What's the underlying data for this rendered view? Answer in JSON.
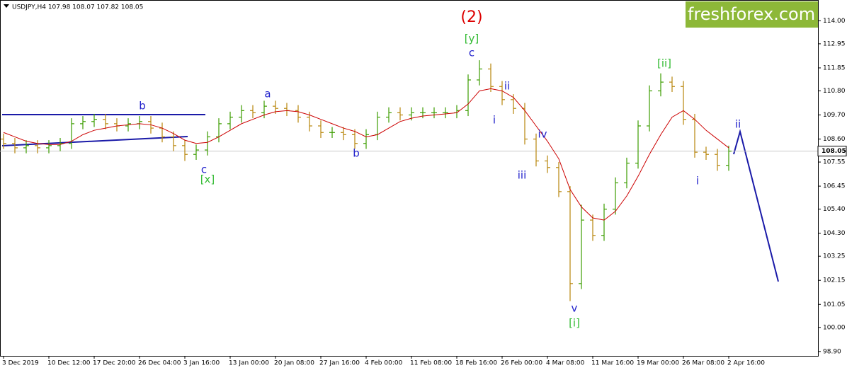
{
  "chart_data": {
    "type": "ohlc",
    "title": "USDJPY,H4  107.98 108.07 107.82 108.05",
    "logo": "freshforex.com",
    "categories": [
      "3 Dec 2019",
      null,
      null,
      null,
      "10 Dec 12:00",
      null,
      null,
      null,
      "17 Dec 20:00",
      null,
      null,
      null,
      "26 Dec 04:00",
      null,
      null,
      null,
      "3 Jan 16:00",
      null,
      null,
      null,
      "13 Jan 00:00",
      null,
      null,
      null,
      "20 Jan 08:00",
      null,
      null,
      null,
      "27 Jan 16:00",
      null,
      null,
      null,
      "4 Feb 00:00",
      null,
      null,
      null,
      "11 Feb 08:00",
      null,
      null,
      null,
      "18 Feb 16:00",
      null,
      null,
      null,
      "26 Feb 00:00",
      null,
      null,
      null,
      "4 Mar 08:00",
      null,
      null,
      null,
      "11 Mar 16:00",
      null,
      null,
      null,
      "19 Mar 00:00",
      null,
      null,
      null,
      "26 Mar 08:00",
      null,
      null,
      null,
      "2 Apr 16:00"
    ],
    "open": [
      108.6,
      108.4,
      108.2,
      108.3,
      108.2,
      108.3,
      108.4,
      109.3,
      109.4,
      109.5,
      109.3,
      109.2,
      109.3,
      109.4,
      109.1,
      108.7,
      108.3,
      107.9,
      108.1,
      108.7,
      109.3,
      109.6,
      109.9,
      109.8,
      110.1,
      110.0,
      109.9,
      109.6,
      109.2,
      108.9,
      108.9,
      108.8,
      108.4,
      108.8,
      109.6,
      109.8,
      109.7,
      109.8,
      109.8,
      109.8,
      109.8,
      109.9,
      111.3,
      111.8,
      111.0,
      110.4,
      110.0,
      108.6,
      107.6,
      107.3,
      106.2,
      102.0,
      104.9,
      104.2,
      105.4,
      106.6,
      107.5,
      109.2,
      110.8,
      111.2,
      111.0,
      109.5,
      108.0,
      107.9,
      107.4
    ],
    "high": [
      108.85,
      108.65,
      108.55,
      108.55,
      108.55,
      108.65,
      109.55,
      109.65,
      109.75,
      109.75,
      109.55,
      109.55,
      109.65,
      109.65,
      109.35,
      108.95,
      108.55,
      108.35,
      108.95,
      109.55,
      109.85,
      110.15,
      110.15,
      110.35,
      110.35,
      110.25,
      110.15,
      109.85,
      109.45,
      109.15,
      109.15,
      109.05,
      109.05,
      109.85,
      110.05,
      110.05,
      110.05,
      110.05,
      110.05,
      110.05,
      110.15,
      111.55,
      112.2,
      112.05,
      111.25,
      110.65,
      110.25,
      108.85,
      107.85,
      107.55,
      106.45,
      105.6,
      105.15,
      105.65,
      106.85,
      107.75,
      109.45,
      111.05,
      111.6,
      111.45,
      111.25,
      109.75,
      108.25,
      108.15,
      108.3
    ],
    "low": [
      108.15,
      107.95,
      107.95,
      107.95,
      107.95,
      108.05,
      108.15,
      109.05,
      109.15,
      109.05,
      108.95,
      108.95,
      109.05,
      108.85,
      108.45,
      108.05,
      107.6,
      107.65,
      107.85,
      108.45,
      109.05,
      109.35,
      109.55,
      109.55,
      109.75,
      109.65,
      109.35,
      108.95,
      108.65,
      108.65,
      108.55,
      108.15,
      108.15,
      108.55,
      109.35,
      109.45,
      109.45,
      109.55,
      109.55,
      109.55,
      109.55,
      109.65,
      111.05,
      110.75,
      110.15,
      109.75,
      108.35,
      107.35,
      107.05,
      105.95,
      101.2,
      101.75,
      103.95,
      103.95,
      105.15,
      106.35,
      107.25,
      108.95,
      110.55,
      110.75,
      109.25,
      107.75,
      107.65,
      107.15,
      107.15
    ],
    "close": [
      108.4,
      108.2,
      108.3,
      108.2,
      108.3,
      108.4,
      109.3,
      109.4,
      109.5,
      109.3,
      109.2,
      109.3,
      109.4,
      109.1,
      108.7,
      108.3,
      107.9,
      108.1,
      108.7,
      109.3,
      109.6,
      109.9,
      109.8,
      110.1,
      110.0,
      109.9,
      109.6,
      109.2,
      108.9,
      108.9,
      108.8,
      108.4,
      108.8,
      109.6,
      109.8,
      109.7,
      109.8,
      109.8,
      109.8,
      109.8,
      109.9,
      111.3,
      111.8,
      111.0,
      110.4,
      110.0,
      108.6,
      107.6,
      107.3,
      106.2,
      102.0,
      104.9,
      104.2,
      105.4,
      106.6,
      107.5,
      109.2,
      110.8,
      111.2,
      111.0,
      109.5,
      108.0,
      107.9,
      107.4,
      108.05
    ],
    "up_color": "#3c9d00",
    "down_color": "#b8860b",
    "ma": {
      "color": "#cc0000",
      "values": [
        108.9,
        108.7,
        108.5,
        108.4,
        108.35,
        108.35,
        108.5,
        108.8,
        109.0,
        109.1,
        109.2,
        109.25,
        109.3,
        109.25,
        109.1,
        108.85,
        108.55,
        108.4,
        108.45,
        108.7,
        109.0,
        109.3,
        109.5,
        109.7,
        109.85,
        109.9,
        109.85,
        109.7,
        109.5,
        109.3,
        109.1,
        108.95,
        108.7,
        108.8,
        109.1,
        109.4,
        109.55,
        109.65,
        109.7,
        109.75,
        109.8,
        110.2,
        110.8,
        110.9,
        110.8,
        110.5,
        109.9,
        109.2,
        108.5,
        107.7,
        106.3,
        105.5,
        105.0,
        104.9,
        105.3,
        106.0,
        106.9,
        107.9,
        108.8,
        109.6,
        109.9,
        109.5,
        109.0,
        108.6,
        108.2
      ]
    },
    "last_price": 108.05,
    "ylim": [
      98.7,
      114.95
    ],
    "yticks": [
      {
        "value": 114,
        "label": "114.00"
      },
      {
        "value": 112.95,
        "label": "112.95"
      },
      {
        "value": 111.85,
        "label": "111.85"
      },
      {
        "value": 110.8,
        "label": "110.80"
      },
      {
        "value": 109.7,
        "label": "109.70"
      },
      {
        "value": 108.6,
        "label": "108.60"
      },
      {
        "value": 107.55,
        "label": "107.55"
      },
      {
        "value": 106.45,
        "label": "106.45"
      },
      {
        "value": 105.4,
        "label": "105.40"
      },
      {
        "value": 104.3,
        "label": "104.30"
      },
      {
        "value": 103.25,
        "label": "103.25"
      },
      {
        "value": 102.15,
        "label": "102.15"
      },
      {
        "value": 101.05,
        "label": "101.05"
      },
      {
        "value": 100,
        "label": "100.00"
      },
      {
        "value": 98.9,
        "label": "98.90"
      }
    ],
    "annotations": [
      {
        "text": "(2)",
        "color": "#dd0000"
      },
      {
        "text": "[y]",
        "color": "#33bb33"
      },
      {
        "text": "c",
        "color": "#2222cc"
      },
      {
        "text": "b",
        "color": "#2222cc"
      },
      {
        "text": "a",
        "color": "#2222cc"
      },
      {
        "text": "b",
        "color": "#2222cc"
      },
      {
        "text": "c",
        "color": "#2222cc"
      },
      {
        "text": "[x]",
        "color": "#33bb33"
      },
      {
        "text": "ii",
        "color": "#2222cc"
      },
      {
        "text": "i",
        "color": "#2222cc"
      },
      {
        "text": "iii",
        "color": "#2222cc"
      },
      {
        "text": "iv",
        "color": "#2222cc"
      },
      {
        "text": "v",
        "color": "#2222cc"
      },
      {
        "text": "[i]",
        "color": "#33bb33"
      },
      {
        "text": "[ii]",
        "color": "#33bb33"
      },
      {
        "text": "i",
        "color": "#2222cc"
      },
      {
        "text": "ii",
        "color": "#2222cc"
      }
    ]
  }
}
